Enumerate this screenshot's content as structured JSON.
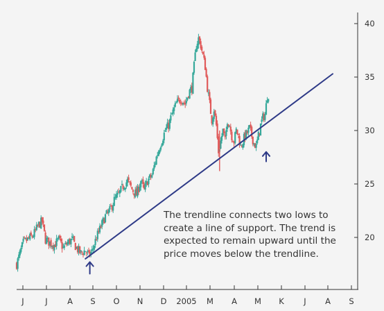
{
  "chart_data": {
    "type": "candlestick",
    "title": "",
    "xlabel": "",
    "ylabel": "",
    "x_ticks": [
      "J",
      "J",
      "A",
      "S",
      "O",
      "N",
      "D",
      "2005",
      "M",
      "A",
      "M",
      "K",
      "J",
      "A",
      "S"
    ],
    "y_ticks": [
      20,
      25,
      30,
      35,
      40
    ],
    "ylim": [
      16.5,
      41.5
    ],
    "y_axis_side": "right",
    "grid": false,
    "colors": {
      "up": "#35a89a",
      "down": "#e05a5a",
      "trendline": "#2e3a87",
      "arrow": "#2e3a87"
    },
    "price_path": [
      [
        0,
        17.5
      ],
      [
        3,
        18.5
      ],
      [
        6,
        19.5
      ],
      [
        10,
        19.8
      ],
      [
        15,
        20.2
      ],
      [
        20,
        21.2
      ],
      [
        23,
        21.5
      ],
      [
        26,
        19.8
      ],
      [
        30,
        19.5
      ],
      [
        34,
        19.3
      ],
      [
        38,
        19.8
      ],
      [
        42,
        19.0
      ],
      [
        46,
        19.5
      ],
      [
        50,
        19.8
      ],
      [
        54,
        19.0
      ],
      [
        58,
        18.5
      ],
      [
        62,
        18.8
      ],
      [
        65,
        18.3
      ],
      [
        68,
        18.7
      ],
      [
        72,
        20.0
      ],
      [
        76,
        21.0
      ],
      [
        80,
        22.0
      ],
      [
        84,
        22.5
      ],
      [
        88,
        23.5
      ],
      [
        92,
        24.0
      ],
      [
        96,
        24.8
      ],
      [
        100,
        25.3
      ],
      [
        104,
        24.5
      ],
      [
        108,
        24.0
      ],
      [
        112,
        25.3
      ],
      [
        115,
        24.4
      ],
      [
        118,
        25.3
      ],
      [
        122,
        25.8
      ],
      [
        126,
        27.5
      ],
      [
        130,
        28.8
      ],
      [
        134,
        30.0
      ],
      [
        137,
        30.5
      ],
      [
        140,
        31.5
      ],
      [
        144,
        32.5
      ],
      [
        148,
        33.0
      ],
      [
        152,
        32.5
      ],
      [
        155,
        33.5
      ],
      [
        158,
        34.0
      ],
      [
        160,
        36.0
      ],
      [
        162,
        38.0
      ],
      [
        164,
        38.6
      ],
      [
        166,
        38.0
      ],
      [
        168,
        37.0
      ],
      [
        170,
        36.0
      ],
      [
        172,
        34.0
      ],
      [
        174,
        32.5
      ],
      [
        176,
        31.0
      ],
      [
        178,
        32.0
      ],
      [
        180,
        30.5
      ],
      [
        182,
        28.0
      ],
      [
        184,
        29.0
      ],
      [
        186,
        30.0
      ],
      [
        188,
        29.0
      ],
      [
        190,
        31.0
      ],
      [
        192,
        30.5
      ],
      [
        194,
        29.5
      ],
      [
        196,
        29.0
      ],
      [
        198,
        30.0
      ],
      [
        200,
        29.5
      ],
      [
        202,
        28.5
      ],
      [
        204,
        29.0
      ],
      [
        206,
        29.5
      ],
      [
        208,
        29.8
      ],
      [
        210,
        30.2
      ],
      [
        212,
        29.5
      ],
      [
        214,
        28.8
      ],
      [
        216,
        28.5
      ],
      [
        218,
        29.5
      ],
      [
        220,
        30.5
      ],
      [
        222,
        31.2
      ],
      [
        224,
        31.5
      ],
      [
        226,
        33.2
      ],
      [
        227,
        33.4
      ]
    ],
    "trendline": {
      "from": [
        62,
        18.0
      ],
      "to": [
        285,
        35.3
      ]
    },
    "support_arrows": [
      {
        "x": 66,
        "y_tip": 17.7,
        "y_tail": 16.6
      },
      {
        "x": 225,
        "y_tip": 28.0,
        "y_tail": 27.1
      }
    ]
  },
  "annotation": {
    "lines": [
      "The trendline connects two lows to",
      "create a line of support.  The trend is",
      "expected to remain upward until the",
      "price moves below the trendline."
    ]
  }
}
